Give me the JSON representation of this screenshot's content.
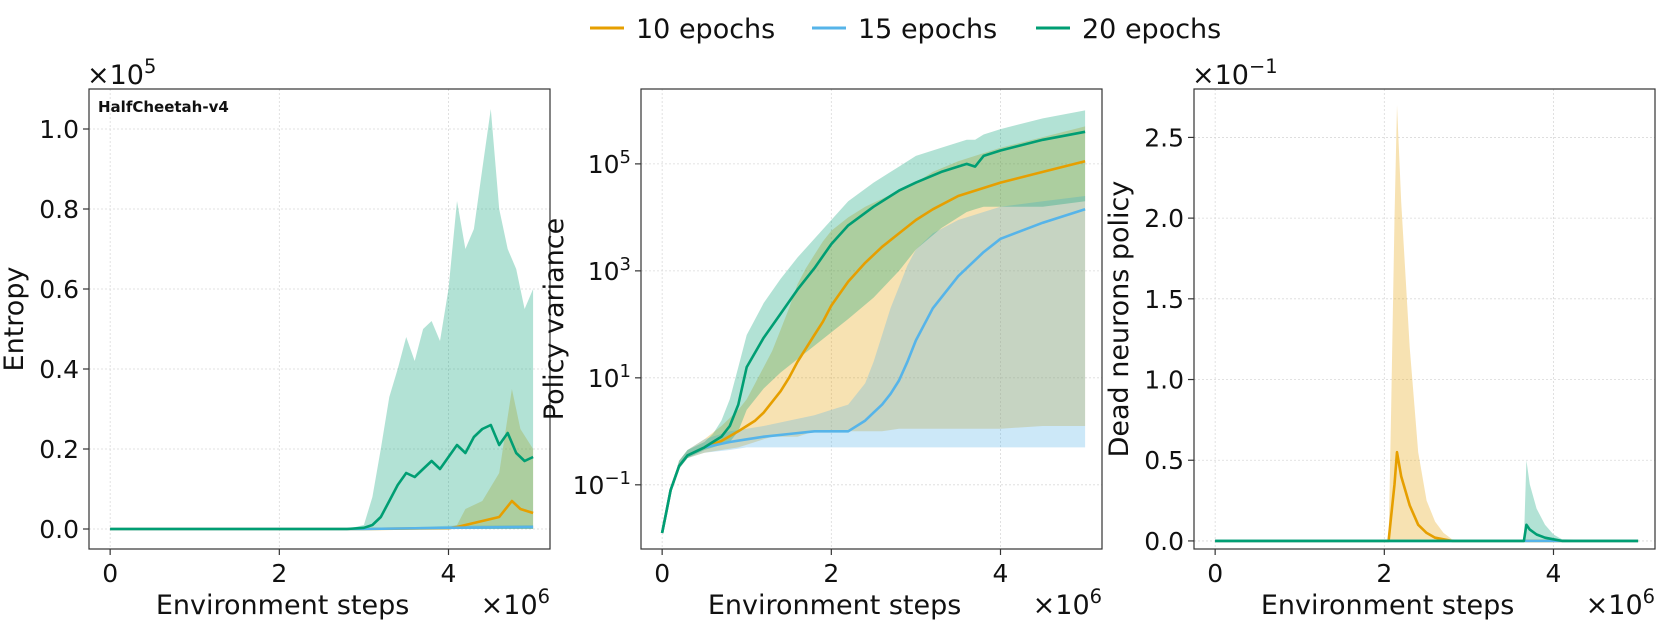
{
  "legend": {
    "placement": "top-center",
    "entries": [
      {
        "label": "10 epochs",
        "color": "#E69F00"
      },
      {
        "label": "15 epochs",
        "color": "#56B4E9"
      },
      {
        "label": "20 epochs",
        "color": "#009E73"
      }
    ]
  },
  "chart_data": [
    {
      "type": "line",
      "title": "HalfCheetah-v4",
      "xlabel": "Environment steps",
      "ylabel": "Entropy",
      "x_multiplier": "×10^6",
      "y_multiplier": "×10^5",
      "xlim": [
        -0.25,
        5.2
      ],
      "ylim": [
        -0.05,
        1.1
      ],
      "xticks": [
        0,
        2,
        4
      ],
      "yticks": [
        0.0,
        0.2,
        0.4,
        0.6,
        0.8,
        1.0
      ],
      "ytick_labels": [
        "0.0",
        "0.2",
        "0.4",
        "0.6",
        "0.8",
        "1.0"
      ],
      "grid": true,
      "series": [
        {
          "name": "10 epochs",
          "color": "#E69F00",
          "x": [
            0,
            1,
            2,
            3,
            4,
            4.1,
            4.2,
            4.4,
            4.6,
            4.75,
            4.85,
            5.0
          ],
          "y": [
            0,
            0,
            0,
            0,
            0.002,
            0.005,
            0.01,
            0.02,
            0.03,
            0.07,
            0.05,
            0.04
          ],
          "lower": [
            0,
            0,
            0,
            0,
            0,
            0,
            0,
            0,
            0,
            0,
            0,
            0
          ],
          "upper": [
            0,
            0,
            0,
            0,
            0.005,
            0.01,
            0.05,
            0.07,
            0.14,
            0.35,
            0.25,
            0.2
          ]
        },
        {
          "name": "15 epochs",
          "color": "#56B4E9",
          "x": [
            0,
            1,
            2,
            3,
            4,
            5
          ],
          "y": [
            0,
            0,
            0,
            0,
            0.003,
            0.005
          ],
          "lower": [
            0,
            0,
            0,
            0,
            0,
            0
          ],
          "upper": [
            0,
            0,
            0,
            0,
            0.008,
            0.01
          ]
        },
        {
          "name": "20 epochs",
          "color": "#009E73",
          "x": [
            0,
            1,
            2,
            2.8,
            3.0,
            3.1,
            3.2,
            3.3,
            3.4,
            3.5,
            3.6,
            3.7,
            3.8,
            3.9,
            4.0,
            4.1,
            4.2,
            4.3,
            4.4,
            4.5,
            4.6,
            4.7,
            4.8,
            4.9,
            5.0
          ],
          "y": [
            0,
            0,
            0,
            0,
            0.003,
            0.01,
            0.03,
            0.07,
            0.11,
            0.14,
            0.13,
            0.15,
            0.17,
            0.15,
            0.18,
            0.21,
            0.19,
            0.23,
            0.25,
            0.26,
            0.21,
            0.24,
            0.19,
            0.17,
            0.18
          ],
          "lower": [
            0,
            0,
            0,
            0,
            0,
            0,
            0,
            0,
            0,
            0,
            0,
            0,
            0,
            0,
            0,
            0,
            0,
            0,
            0,
            0,
            0,
            0,
            0,
            0,
            0
          ],
          "upper": [
            0,
            0,
            0,
            0,
            0.01,
            0.08,
            0.2,
            0.33,
            0.4,
            0.48,
            0.42,
            0.5,
            0.52,
            0.47,
            0.6,
            0.82,
            0.7,
            0.75,
            0.9,
            1.05,
            0.8,
            0.7,
            0.65,
            0.55,
            0.6
          ]
        }
      ]
    },
    {
      "type": "line",
      "xlabel": "Environment steps",
      "ylabel": "Policy variance",
      "x_multiplier": "×10^6",
      "yscale": "log",
      "xlim": [
        -0.25,
        5.2
      ],
      "ylim_log10": [
        -2.2,
        6.4
      ],
      "xticks": [
        0,
        2,
        4
      ],
      "yticks_log10": [
        -1,
        1,
        3,
        5
      ],
      "ytick_labels": [
        "10^-1",
        "10^1",
        "10^3",
        "10^5"
      ],
      "grid": true,
      "series": [
        {
          "name": "10 epochs",
          "color": "#E69F00",
          "x": [
            0,
            0.05,
            0.1,
            0.2,
            0.3,
            0.5,
            0.7,
            0.9,
            1.0,
            1.1,
            1.2,
            1.3,
            1.4,
            1.5,
            1.6,
            1.7,
            1.8,
            1.9,
            2.0,
            2.2,
            2.4,
            2.6,
            2.8,
            3.0,
            3.2,
            3.5,
            4.0,
            4.5,
            5.0
          ],
          "log10_y": [
            -1.9,
            -1.5,
            -1.1,
            -0.65,
            -0.45,
            -0.3,
            -0.18,
            0.0,
            0.1,
            0.2,
            0.35,
            0.55,
            0.75,
            1.0,
            1.3,
            1.55,
            1.8,
            2.05,
            2.35,
            2.8,
            3.15,
            3.45,
            3.7,
            3.95,
            4.15,
            4.4,
            4.65,
            4.85,
            5.05
          ],
          "lower_log10": [
            -1.9,
            -1.5,
            -1.1,
            -0.7,
            -0.5,
            -0.4,
            -0.35,
            -0.3,
            -0.25,
            -0.2,
            -0.15,
            -0.1,
            -0.1,
            -0.1,
            -0.1,
            -0.05,
            0.0,
            0.0,
            0.0,
            0.0,
            0.0,
            0.0,
            0.05,
            0.05,
            0.05,
            0.05,
            0.05,
            0.1,
            0.1
          ],
          "upper_log10": [
            -1.9,
            -1.5,
            -1.1,
            -0.55,
            -0.35,
            -0.15,
            0.1,
            0.4,
            0.6,
            0.9,
            1.2,
            1.5,
            1.9,
            2.3,
            2.75,
            3.05,
            3.3,
            3.55,
            3.75,
            4.0,
            4.2,
            4.35,
            4.5,
            4.65,
            4.85,
            5.05,
            5.3,
            5.5,
            5.7
          ]
        },
        {
          "name": "15 epochs",
          "color": "#56B4E9",
          "x": [
            0,
            0.05,
            0.1,
            0.2,
            0.3,
            0.5,
            0.8,
            1.0,
            1.2,
            1.5,
            1.8,
            2.0,
            2.2,
            2.4,
            2.5,
            2.6,
            2.7,
            2.8,
            2.9,
            3.0,
            3.2,
            3.5,
            3.8,
            4.0,
            4.5,
            5.0
          ],
          "log10_y": [
            -1.9,
            -1.5,
            -1.1,
            -0.65,
            -0.45,
            -0.3,
            -0.2,
            -0.15,
            -0.1,
            -0.05,
            0.0,
            0.0,
            0.0,
            0.2,
            0.35,
            0.5,
            0.7,
            0.95,
            1.3,
            1.7,
            2.3,
            2.9,
            3.35,
            3.6,
            3.9,
            4.15
          ],
          "lower_log10": [
            -1.9,
            -1.5,
            -1.1,
            -0.7,
            -0.5,
            -0.4,
            -0.35,
            -0.3,
            -0.3,
            -0.3,
            -0.3,
            -0.3,
            -0.3,
            -0.3,
            -0.3,
            -0.3,
            -0.3,
            -0.3,
            -0.3,
            -0.3,
            -0.3,
            -0.3,
            -0.3,
            -0.3,
            -0.3,
            -0.3
          ],
          "upper_log10": [
            -1.9,
            -1.5,
            -1.1,
            -0.55,
            -0.35,
            -0.15,
            0.0,
            0.05,
            0.1,
            0.2,
            0.3,
            0.4,
            0.5,
            0.9,
            1.3,
            1.8,
            2.3,
            2.7,
            3.1,
            3.4,
            3.7,
            3.95,
            4.1,
            4.2,
            4.3,
            4.4
          ]
        },
        {
          "name": "20 epochs",
          "color": "#009E73",
          "x": [
            0,
            0.05,
            0.1,
            0.2,
            0.3,
            0.5,
            0.6,
            0.7,
            0.8,
            0.9,
            1.0,
            1.2,
            1.4,
            1.6,
            1.8,
            2.0,
            2.2,
            2.5,
            2.8,
            3.0,
            3.3,
            3.6,
            3.7,
            3.8,
            4.0,
            4.5,
            5.0
          ],
          "log10_y": [
            -1.9,
            -1.5,
            -1.1,
            -0.65,
            -0.45,
            -0.3,
            -0.2,
            -0.1,
            0.1,
            0.5,
            1.2,
            1.75,
            2.2,
            2.65,
            3.05,
            3.5,
            3.85,
            4.2,
            4.5,
            4.65,
            4.85,
            5.0,
            4.95,
            5.15,
            5.25,
            5.45,
            5.6
          ],
          "lower_log10": [
            -1.9,
            -1.5,
            -1.1,
            -0.7,
            -0.5,
            -0.35,
            -0.3,
            -0.25,
            -0.2,
            0.0,
            0.4,
            0.8,
            1.1,
            1.35,
            1.6,
            1.85,
            2.1,
            2.5,
            3.0,
            3.4,
            3.8,
            4.1,
            4.15,
            4.2,
            4.2,
            4.2,
            4.3
          ],
          "upper_log10": [
            -1.9,
            -1.5,
            -1.1,
            -0.55,
            -0.35,
            -0.2,
            -0.05,
            0.2,
            0.6,
            1.2,
            1.8,
            2.4,
            2.85,
            3.25,
            3.6,
            3.95,
            4.3,
            4.65,
            4.95,
            5.15,
            5.3,
            5.45,
            5.45,
            5.55,
            5.65,
            5.85,
            6.0
          ]
        }
      ]
    },
    {
      "type": "line",
      "xlabel": "Environment steps",
      "ylabel": "Dead neurons policy",
      "x_multiplier": "×10^6",
      "y_multiplier": "×10^-1",
      "xlim": [
        -0.25,
        5.2
      ],
      "ylim": [
        -0.05,
        2.8
      ],
      "xticks": [
        0,
        2,
        4
      ],
      "yticks": [
        0.0,
        0.5,
        1.0,
        1.5,
        2.0,
        2.5
      ],
      "ytick_labels": [
        "0.0",
        "0.5",
        "1.0",
        "1.5",
        "2.0",
        "2.5"
      ],
      "grid": true,
      "series": [
        {
          "name": "10 epochs",
          "color": "#E69F00",
          "x": [
            0,
            2.0,
            2.05,
            2.08,
            2.12,
            2.15,
            2.2,
            2.3,
            2.4,
            2.5,
            2.6,
            2.7,
            2.8,
            3.0,
            5.0
          ],
          "y": [
            0,
            0,
            0,
            0.15,
            0.35,
            0.55,
            0.4,
            0.22,
            0.1,
            0.05,
            0.02,
            0.01,
            0.0,
            0,
            0
          ],
          "lower": [
            0,
            0,
            0,
            0,
            0,
            0,
            0,
            0,
            0,
            0,
            0,
            0,
            0,
            0,
            0
          ],
          "upper": [
            0,
            0,
            0,
            0.8,
            2.0,
            2.7,
            2.1,
            1.2,
            0.55,
            0.25,
            0.12,
            0.05,
            0.01,
            0,
            0
          ]
        },
        {
          "name": "15 epochs",
          "color": "#56B4E9",
          "x": [
            0,
            5.0
          ],
          "y": [
            0,
            0
          ],
          "lower": [
            0,
            0
          ],
          "upper": [
            0,
            0
          ]
        },
        {
          "name": "20 epochs",
          "color": "#009E73",
          "x": [
            0,
            3.6,
            3.65,
            3.68,
            3.72,
            3.8,
            3.9,
            4.0,
            4.1,
            5.0
          ],
          "y": [
            0,
            0,
            0,
            0.1,
            0.07,
            0.04,
            0.02,
            0.01,
            0.0,
            0
          ],
          "lower": [
            0,
            0,
            0,
            0,
            0,
            0,
            0,
            0,
            0,
            0
          ],
          "upper": [
            0,
            0,
            0,
            0.5,
            0.35,
            0.2,
            0.1,
            0.04,
            0.01,
            0
          ]
        }
      ]
    }
  ]
}
